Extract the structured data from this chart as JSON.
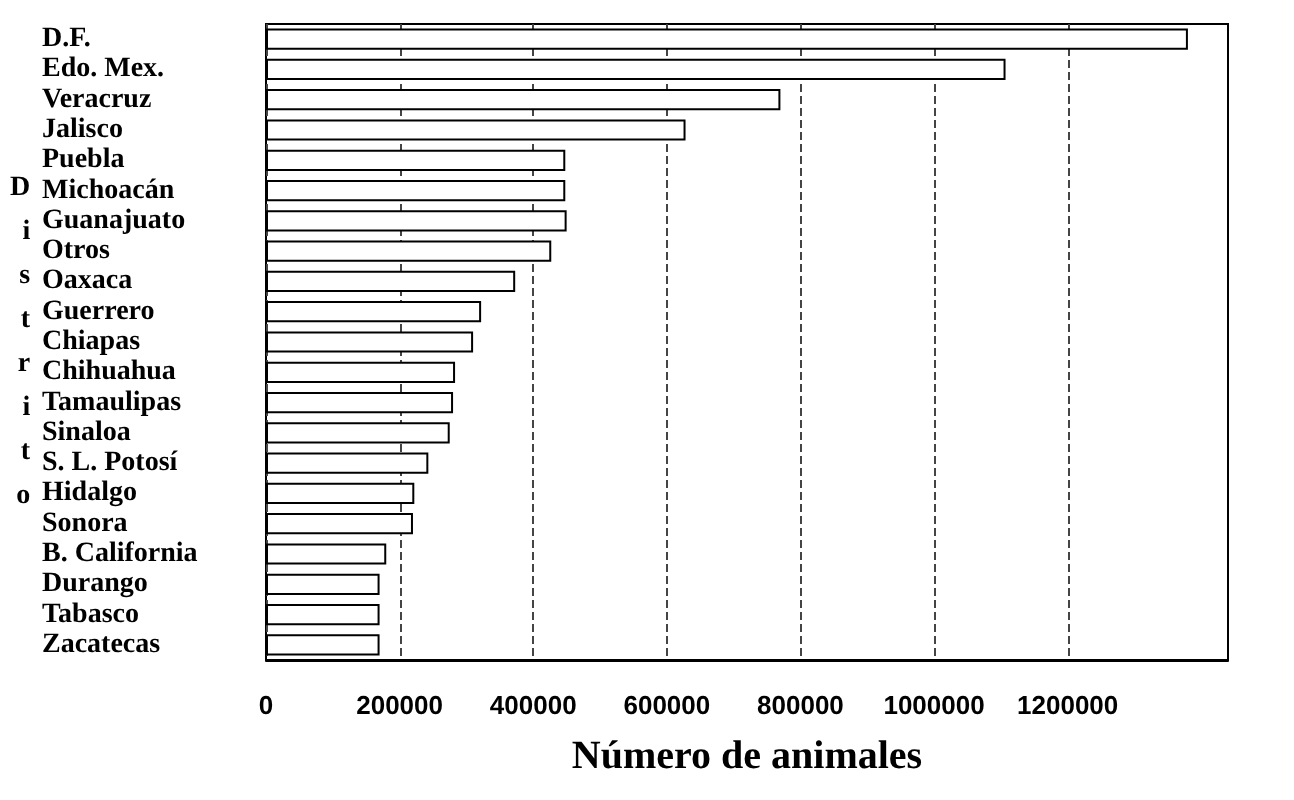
{
  "chart_data": {
    "type": "bar",
    "orientation": "horizontal",
    "xlabel": "Número de animales",
    "ylabel": "Distrito",
    "categories": [
      "D.F.",
      "Edo. Mex.",
      "Veracruz",
      "Jalisco",
      "Puebla",
      "Michoacán",
      "Guanajuato",
      "Otros",
      "Oaxaca",
      "Guerrero",
      "Chiapas",
      "Chihuahua",
      "Tamaulipas",
      "Sinaloa",
      "S. L. Potosí",
      "Hidalgo",
      "Sonora",
      "B. California",
      "Durango",
      "Tabasco",
      "Zacatecas"
    ],
    "values": [
      1380000,
      1107000,
      770000,
      628000,
      448000,
      448000,
      450000,
      427000,
      373000,
      322000,
      310000,
      283000,
      280000,
      275000,
      243000,
      222000,
      220000,
      180000,
      170000,
      170000,
      170000
    ],
    "color": "#ffffff",
    "xlim": [
      0,
      1440000
    ],
    "xticks": [
      0,
      200000,
      400000,
      600000,
      800000,
      1000000,
      1200000
    ],
    "grid": "x"
  }
}
